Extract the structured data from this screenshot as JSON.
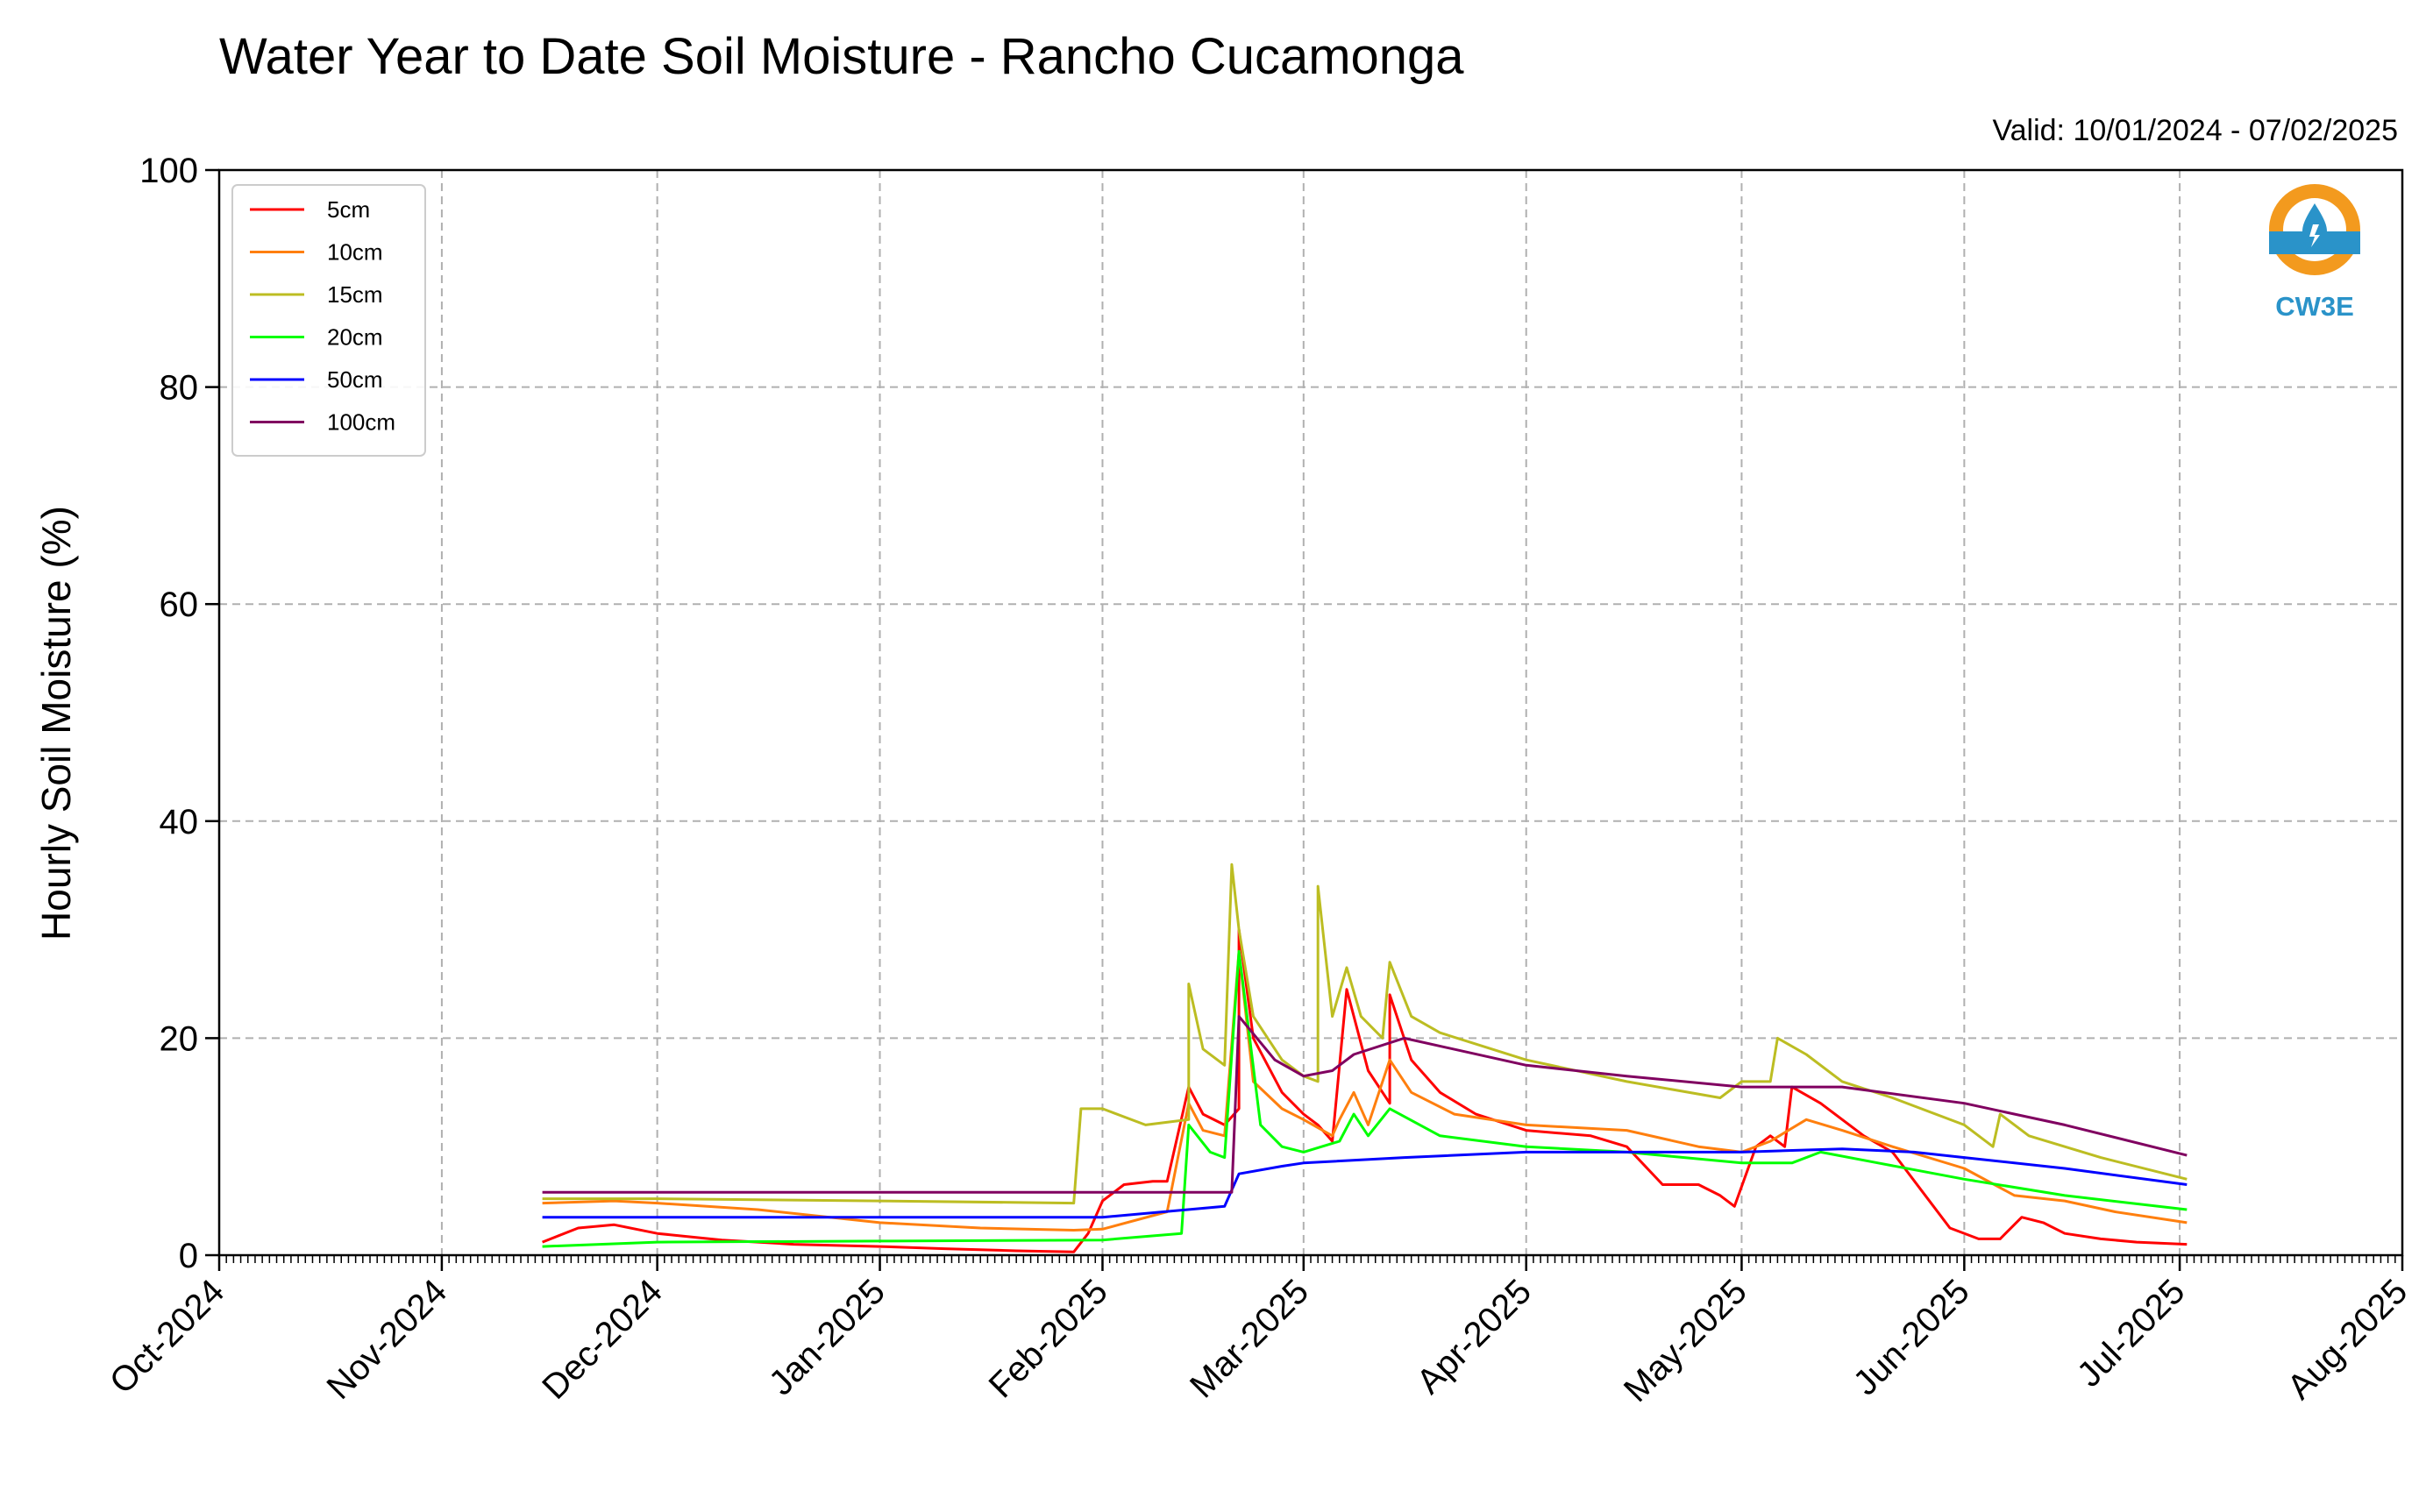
{
  "chart_data": {
    "type": "line",
    "title": "Water Year to Date Soil Moisture - Rancho Cucamonga",
    "subtitle": "Valid: 10/01/2024 - 07/02/2025",
    "xlabel": "",
    "ylabel": "Hourly Soil Moisture (%)",
    "xlim": [
      "2024-10-01",
      "2025-08-01"
    ],
    "ylim": [
      0,
      100
    ],
    "yticks": [
      0,
      20,
      40,
      60,
      80,
      100
    ],
    "xticks": [
      {
        "date": "2024-10-01",
        "label": "Oct-2024"
      },
      {
        "date": "2024-11-01",
        "label": "Nov-2024"
      },
      {
        "date": "2024-12-01",
        "label": "Dec-2024"
      },
      {
        "date": "2025-01-01",
        "label": "Jan-2025"
      },
      {
        "date": "2025-02-01",
        "label": "Feb-2025"
      },
      {
        "date": "2025-03-01",
        "label": "Mar-2025"
      },
      {
        "date": "2025-04-01",
        "label": "Apr-2025"
      },
      {
        "date": "2025-05-01",
        "label": "May-2025"
      },
      {
        "date": "2025-06-01",
        "label": "Jun-2025"
      },
      {
        "date": "2025-07-01",
        "label": "Jul-2025"
      },
      {
        "date": "2025-08-01",
        "label": "Aug-2025"
      }
    ],
    "grid": true,
    "legend_position": "upper-left",
    "logo": {
      "text": "CW3E",
      "icon": "water-drop-logo-icon",
      "ring_color": "#f39a1e",
      "accent_color": "#2a93c9"
    },
    "series": [
      {
        "name": "5cm",
        "color": "#ff0000",
        "points": [
          [
            "2024-11-15",
            1.2
          ],
          [
            "2024-11-20",
            2.5
          ],
          [
            "2024-11-25",
            2.8
          ],
          [
            "2024-12-01",
            2.0
          ],
          [
            "2024-12-10",
            1.4
          ],
          [
            "2024-12-20",
            1.0
          ],
          [
            "2025-01-01",
            0.8
          ],
          [
            "2025-01-10",
            0.6
          ],
          [
            "2025-01-20",
            0.4
          ],
          [
            "2025-01-28",
            0.3
          ],
          [
            "2025-01-30",
            2.0
          ],
          [
            "2025-02-01",
            5.0
          ],
          [
            "2025-02-04",
            6.5
          ],
          [
            "2025-02-08",
            6.8
          ],
          [
            "2025-02-10",
            6.8
          ],
          [
            "2025-02-13",
            15.5
          ],
          [
            "2025-02-15",
            13.0
          ],
          [
            "2025-02-18",
            12.0
          ],
          [
            "2025-02-20",
            13.5
          ],
          [
            "2025-02-20",
            30.0
          ],
          [
            "2025-02-22",
            20.0
          ],
          [
            "2025-02-26",
            15.0
          ],
          [
            "2025-03-01",
            13.0
          ],
          [
            "2025-03-03",
            12.0
          ],
          [
            "2025-03-05",
            10.5
          ],
          [
            "2025-03-07",
            24.5
          ],
          [
            "2025-03-10",
            17.0
          ],
          [
            "2025-03-13",
            14.0
          ],
          [
            "2025-03-13",
            24.0
          ],
          [
            "2025-03-16",
            18.0
          ],
          [
            "2025-03-20",
            15.0
          ],
          [
            "2025-03-25",
            13.0
          ],
          [
            "2025-04-01",
            11.5
          ],
          [
            "2025-04-10",
            11.0
          ],
          [
            "2025-04-15",
            10.0
          ],
          [
            "2025-04-20",
            6.5
          ],
          [
            "2025-04-25",
            6.5
          ],
          [
            "2025-04-28",
            5.5
          ],
          [
            "2025-04-30",
            4.5
          ],
          [
            "2025-05-03",
            10.0
          ],
          [
            "2025-05-05",
            11.0
          ],
          [
            "2025-05-07",
            10.0
          ],
          [
            "2025-05-08",
            15.5
          ],
          [
            "2025-05-12",
            14.0
          ],
          [
            "2025-05-18",
            11.0
          ],
          [
            "2025-05-22",
            9.5
          ],
          [
            "2025-05-26",
            6.0
          ],
          [
            "2025-05-30",
            2.5
          ],
          [
            "2025-06-03",
            1.5
          ],
          [
            "2025-06-06",
            1.5
          ],
          [
            "2025-06-09",
            3.5
          ],
          [
            "2025-06-12",
            3.0
          ],
          [
            "2025-06-15",
            2.0
          ],
          [
            "2025-06-20",
            1.5
          ],
          [
            "2025-06-25",
            1.2
          ],
          [
            "2025-07-02",
            1.0
          ]
        ]
      },
      {
        "name": "10cm",
        "color": "#ff7f0e",
        "points": [
          [
            "2024-11-15",
            4.8
          ],
          [
            "2024-11-25",
            5.0
          ],
          [
            "2024-12-01",
            4.8
          ],
          [
            "2024-12-15",
            4.2
          ],
          [
            "2025-01-01",
            3.0
          ],
          [
            "2025-01-15",
            2.5
          ],
          [
            "2025-01-28",
            2.3
          ],
          [
            "2025-02-01",
            2.4
          ],
          [
            "2025-02-10",
            4.0
          ],
          [
            "2025-02-13",
            14.0
          ],
          [
            "2025-02-15",
            11.5
          ],
          [
            "2025-02-18",
            11.0
          ],
          [
            "2025-02-20",
            28.0
          ],
          [
            "2025-02-22",
            16.0
          ],
          [
            "2025-02-26",
            13.5
          ],
          [
            "2025-03-01",
            12.5
          ],
          [
            "2025-03-05",
            11.0
          ],
          [
            "2025-03-06",
            12.5
          ],
          [
            "2025-03-08",
            15.0
          ],
          [
            "2025-03-10",
            12.0
          ],
          [
            "2025-03-13",
            18.0
          ],
          [
            "2025-03-16",
            15.0
          ],
          [
            "2025-03-22",
            13.0
          ],
          [
            "2025-04-01",
            12.0
          ],
          [
            "2025-04-15",
            11.5
          ],
          [
            "2025-04-25",
            10.0
          ],
          [
            "2025-05-01",
            9.5
          ],
          [
            "2025-05-05",
            10.5
          ],
          [
            "2025-05-10",
            12.5
          ],
          [
            "2025-05-15",
            11.5
          ],
          [
            "2025-05-22",
            10.0
          ],
          [
            "2025-06-01",
            8.0
          ],
          [
            "2025-06-08",
            5.5
          ],
          [
            "2025-06-15",
            5.0
          ],
          [
            "2025-06-22",
            4.0
          ],
          [
            "2025-07-02",
            3.0
          ]
        ]
      },
      {
        "name": "15cm",
        "color": "#bcbd22",
        "points": [
          [
            "2024-11-15",
            5.2
          ],
          [
            "2024-12-01",
            5.2
          ],
          [
            "2025-01-01",
            5.0
          ],
          [
            "2025-01-28",
            4.8
          ],
          [
            "2025-01-29",
            13.5
          ],
          [
            "2025-02-01",
            13.5
          ],
          [
            "2025-02-07",
            12.0
          ],
          [
            "2025-02-13",
            12.5
          ],
          [
            "2025-02-13",
            25.0
          ],
          [
            "2025-02-15",
            19.0
          ],
          [
            "2025-02-18",
            17.5
          ],
          [
            "2025-02-19",
            36.0
          ],
          [
            "2025-02-20",
            30.0
          ],
          [
            "2025-02-22",
            22.0
          ],
          [
            "2025-02-26",
            18.0
          ],
          [
            "2025-03-01",
            16.5
          ],
          [
            "2025-03-03",
            16.0
          ],
          [
            "2025-03-03",
            34.0
          ],
          [
            "2025-03-05",
            22.0
          ],
          [
            "2025-03-07",
            26.5
          ],
          [
            "2025-03-09",
            22.0
          ],
          [
            "2025-03-12",
            20.0
          ],
          [
            "2025-03-13",
            27.0
          ],
          [
            "2025-03-16",
            22.0
          ],
          [
            "2025-03-20",
            20.5
          ],
          [
            "2025-04-01",
            18.0
          ],
          [
            "2025-04-15",
            16.0
          ],
          [
            "2025-04-28",
            14.5
          ],
          [
            "2025-05-01",
            16.0
          ],
          [
            "2025-05-05",
            16.0
          ],
          [
            "2025-05-06",
            20.0
          ],
          [
            "2025-05-10",
            18.5
          ],
          [
            "2025-05-15",
            16.0
          ],
          [
            "2025-05-22",
            14.5
          ],
          [
            "2025-06-01",
            12.0
          ],
          [
            "2025-06-05",
            10.0
          ],
          [
            "2025-06-06",
            13.0
          ],
          [
            "2025-06-10",
            11.0
          ],
          [
            "2025-06-20",
            9.0
          ],
          [
            "2025-07-02",
            7.0
          ]
        ]
      },
      {
        "name": "20cm",
        "color": "#00ff00",
        "points": [
          [
            "2024-11-15",
            0.8
          ],
          [
            "2024-12-01",
            1.2
          ],
          [
            "2025-01-01",
            1.3
          ],
          [
            "2025-02-01",
            1.4
          ],
          [
            "2025-02-12",
            2.0
          ],
          [
            "2025-02-13",
            12.0
          ],
          [
            "2025-02-16",
            9.5
          ],
          [
            "2025-02-18",
            9.0
          ],
          [
            "2025-02-20",
            28.0
          ],
          [
            "2025-02-23",
            12.0
          ],
          [
            "2025-02-26",
            10.0
          ],
          [
            "2025-03-01",
            9.5
          ],
          [
            "2025-03-06",
            10.5
          ],
          [
            "2025-03-08",
            13.0
          ],
          [
            "2025-03-10",
            11.0
          ],
          [
            "2025-03-13",
            13.5
          ],
          [
            "2025-03-20",
            11.0
          ],
          [
            "2025-04-01",
            10.0
          ],
          [
            "2025-04-15",
            9.5
          ],
          [
            "2025-05-01",
            8.5
          ],
          [
            "2025-05-08",
            8.5
          ],
          [
            "2025-05-12",
            9.5
          ],
          [
            "2025-05-20",
            8.5
          ],
          [
            "2025-06-01",
            7.0
          ],
          [
            "2025-06-15",
            5.5
          ],
          [
            "2025-07-02",
            4.2
          ]
        ]
      },
      {
        "name": "50cm",
        "color": "#0000ff",
        "points": [
          [
            "2024-11-15",
            3.5
          ],
          [
            "2025-01-01",
            3.5
          ],
          [
            "2025-02-01",
            3.5
          ],
          [
            "2025-02-18",
            4.5
          ],
          [
            "2025-02-20",
            7.5
          ],
          [
            "2025-02-26",
            8.2
          ],
          [
            "2025-03-01",
            8.5
          ],
          [
            "2025-03-15",
            9.0
          ],
          [
            "2025-04-01",
            9.5
          ],
          [
            "2025-05-01",
            9.5
          ],
          [
            "2025-05-15",
            9.8
          ],
          [
            "2025-05-25",
            9.5
          ],
          [
            "2025-06-01",
            9.0
          ],
          [
            "2025-06-15",
            8.0
          ],
          [
            "2025-07-02",
            6.5
          ]
        ]
      },
      {
        "name": "100cm",
        "color": "#800060",
        "points": [
          [
            "2024-11-15",
            5.8
          ],
          [
            "2025-01-01",
            5.8
          ],
          [
            "2025-02-01",
            5.8
          ],
          [
            "2025-02-19",
            5.8
          ],
          [
            "2025-02-20",
            22.0
          ],
          [
            "2025-02-25",
            18.0
          ],
          [
            "2025-03-01",
            16.5
          ],
          [
            "2025-03-05",
            17.0
          ],
          [
            "2025-03-08",
            18.5
          ],
          [
            "2025-03-15",
            20.0
          ],
          [
            "2025-04-01",
            17.5
          ],
          [
            "2025-04-15",
            16.5
          ],
          [
            "2025-05-01",
            15.5
          ],
          [
            "2025-05-15",
            15.5
          ],
          [
            "2025-06-01",
            14.0
          ],
          [
            "2025-06-15",
            12.0
          ],
          [
            "2025-07-02",
            9.2
          ]
        ]
      }
    ]
  }
}
